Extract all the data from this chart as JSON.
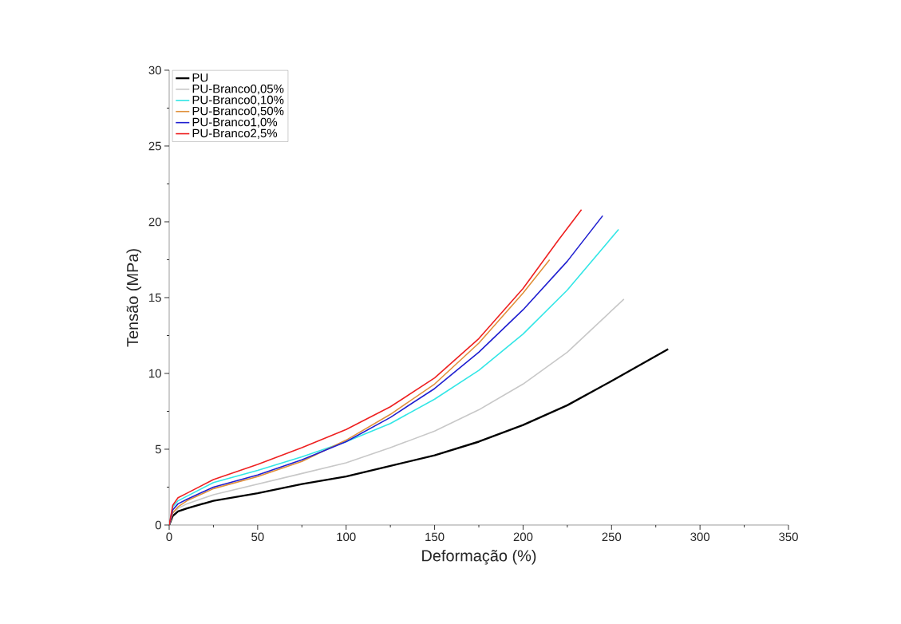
{
  "chart_data": {
    "type": "line",
    "xlabel": "Deformação (%)",
    "ylabel": "Tensão (MPa)",
    "xlim": [
      0,
      350
    ],
    "ylim": [
      0,
      30
    ],
    "xticks": [
      0,
      50,
      100,
      150,
      200,
      250,
      300,
      350
    ],
    "yticks": [
      0,
      5,
      10,
      15,
      20,
      25,
      30
    ],
    "grid": false,
    "legend": "top left",
    "marker": "none",
    "line_style": "solid",
    "series": [
      {
        "name": "PU",
        "color": "#000000",
        "x": [
          0,
          2,
          5,
          10,
          25,
          50,
          75,
          100,
          125,
          150,
          175,
          200,
          225,
          250,
          282
        ],
        "values": [
          0,
          0.6,
          0.9,
          1.1,
          1.6,
          2.1,
          2.7,
          3.2,
          3.9,
          4.6,
          5.5,
          6.6,
          7.9,
          9.5,
          11.6
        ]
      },
      {
        "name": "PU-Branco0,05%",
        "color": "#c8c8c8",
        "x": [
          0,
          2,
          5,
          10,
          25,
          50,
          75,
          100,
          125,
          150,
          175,
          200,
          225,
          257
        ],
        "values": [
          0,
          0.8,
          1.1,
          1.4,
          2.0,
          2.7,
          3.4,
          4.1,
          5.1,
          6.2,
          7.6,
          9.3,
          11.4,
          14.9
        ]
      },
      {
        "name": "PU-Branco0,10%",
        "color": "#33e6e6",
        "x": [
          0,
          2,
          5,
          10,
          25,
          50,
          75,
          100,
          125,
          150,
          175,
          200,
          225,
          254
        ],
        "values": [
          0,
          1.2,
          1.6,
          1.9,
          2.8,
          3.6,
          4.5,
          5.5,
          6.7,
          8.3,
          10.2,
          12.6,
          15.5,
          19.5
        ]
      },
      {
        "name": "PU-Branco0,50%",
        "color": "#e0903a",
        "x": [
          0,
          2,
          5,
          10,
          25,
          50,
          75,
          100,
          125,
          150,
          175,
          200,
          215
        ],
        "values": [
          0,
          0.8,
          1.2,
          1.6,
          2.4,
          3.2,
          4.2,
          5.6,
          7.3,
          9.3,
          12.0,
          15.3,
          17.5
        ]
      },
      {
        "name": "PU-Branco1,0%",
        "color": "#1f1fd0",
        "x": [
          0,
          2,
          5,
          10,
          25,
          50,
          75,
          100,
          125,
          150,
          175,
          200,
          225,
          245
        ],
        "values": [
          0,
          1.0,
          1.4,
          1.7,
          2.5,
          3.3,
          4.3,
          5.5,
          7.1,
          9.0,
          11.4,
          14.2,
          17.4,
          20.4
        ]
      },
      {
        "name": "PU-Branco2,5%",
        "color": "#ee2020",
        "x": [
          0,
          2,
          5,
          10,
          25,
          50,
          75,
          100,
          125,
          150,
          175,
          200,
          220,
          233
        ],
        "values": [
          0,
          1.3,
          1.8,
          2.1,
          3.0,
          4.0,
          5.1,
          6.3,
          7.8,
          9.7,
          12.3,
          15.6,
          18.8,
          20.8
        ]
      }
    ]
  }
}
